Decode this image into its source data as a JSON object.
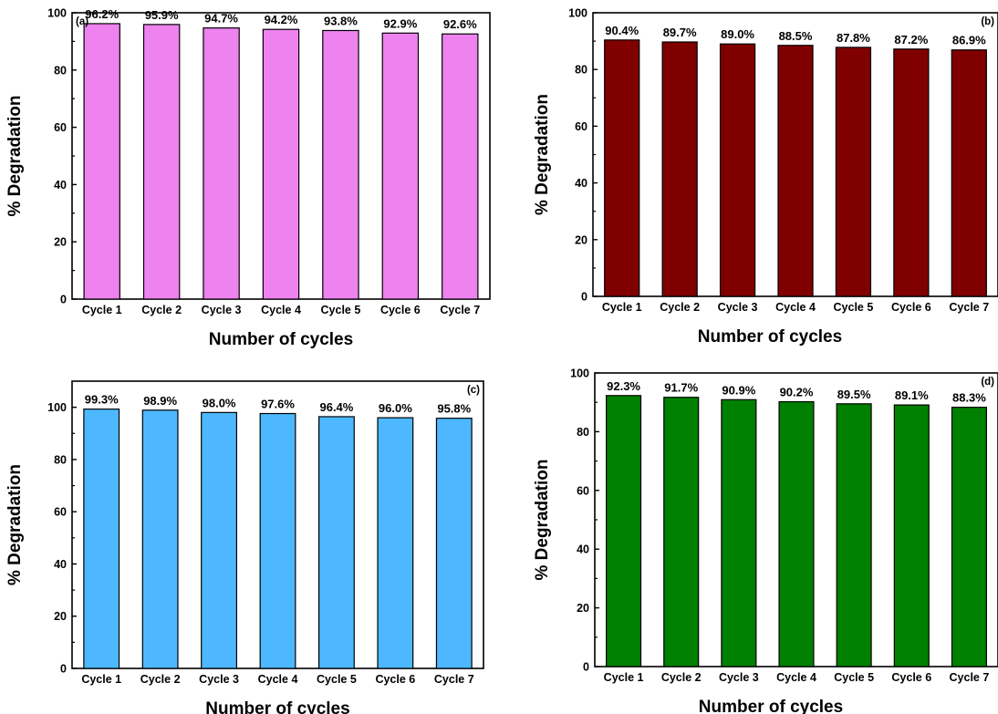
{
  "chart_data": [
    {
      "type": "bar",
      "panel_label": "(a)",
      "categories": [
        "Cycle 1",
        "Cycle 2",
        "Cycle 3",
        "Cycle 4",
        "Cycle 5",
        "Cycle 6",
        "Cycle 7"
      ],
      "values": [
        96.2,
        95.9,
        94.7,
        94.2,
        93.8,
        92.9,
        92.6
      ],
      "data_labels": [
        "96.2%",
        "95.9%",
        "94.7%",
        "94.2%",
        "93.8%",
        "92.9%",
        "92.6%"
      ],
      "xlabel": "Number of cycles",
      "ylabel": "% Degradation",
      "ylim": [
        0,
        100
      ],
      "yticks": [
        0,
        20,
        40,
        60,
        80,
        100
      ],
      "color": "#ee82ee",
      "grid": false,
      "panel_label_position": "top-left"
    },
    {
      "type": "bar",
      "panel_label": "(b)",
      "categories": [
        "Cycle 1",
        "Cycle 2",
        "Cycle 3",
        "Cycle 4",
        "Cycle 5",
        "Cycle 6",
        "Cycle 7"
      ],
      "values": [
        90.4,
        89.7,
        89.0,
        88.5,
        87.8,
        87.2,
        86.9
      ],
      "data_labels": [
        "90.4%",
        "89.7%",
        "89.0%",
        "88.5%",
        "87.8%",
        "87.2%",
        "86.9%"
      ],
      "xlabel": "Number of cycles",
      "ylabel": "% Degradation",
      "ylim": [
        0,
        100
      ],
      "yticks": [
        0,
        20,
        40,
        60,
        80,
        100
      ],
      "color": "#800000",
      "grid": false,
      "panel_label_position": "top-right"
    },
    {
      "type": "bar",
      "panel_label": "(c)",
      "categories": [
        "Cycle 1",
        "Cycle 2",
        "Cycle 3",
        "Cycle 4",
        "Cycle 5",
        "Cycle 6",
        "Cycle 7"
      ],
      "values": [
        99.3,
        98.9,
        98.0,
        97.6,
        96.4,
        96.0,
        95.8
      ],
      "data_labels": [
        "99.3%",
        "98.9%",
        "98.0%",
        "97.6%",
        "96.4%",
        "96.0%",
        "95.8%"
      ],
      "xlabel": "Number of cycles",
      "ylabel": "% Degradation",
      "ylim": [
        0,
        110
      ],
      "yticks": [
        0,
        20,
        40,
        60,
        80,
        100
      ],
      "color": "#4db8ff",
      "grid": false,
      "panel_label_position": "top-right"
    },
    {
      "type": "bar",
      "panel_label": "(d)",
      "categories": [
        "Cycle 1",
        "Cycle 2",
        "Cycle 3",
        "Cycle 4",
        "Cycle 5",
        "Cycle 6",
        "Cycle 7"
      ],
      "values": [
        92.3,
        91.7,
        90.9,
        90.2,
        89.5,
        89.1,
        88.3
      ],
      "data_labels": [
        "92.3%",
        "91.7%",
        "90.9%",
        "90.2%",
        "89.5%",
        "89.1%",
        "88.3%"
      ],
      "xlabel": "Number of cycles",
      "ylabel": "% Degradation",
      "ylim": [
        0,
        100
      ],
      "yticks": [
        0,
        20,
        40,
        60,
        80,
        100
      ],
      "color": "#008000",
      "grid": false,
      "panel_label_position": "top-right"
    }
  ]
}
